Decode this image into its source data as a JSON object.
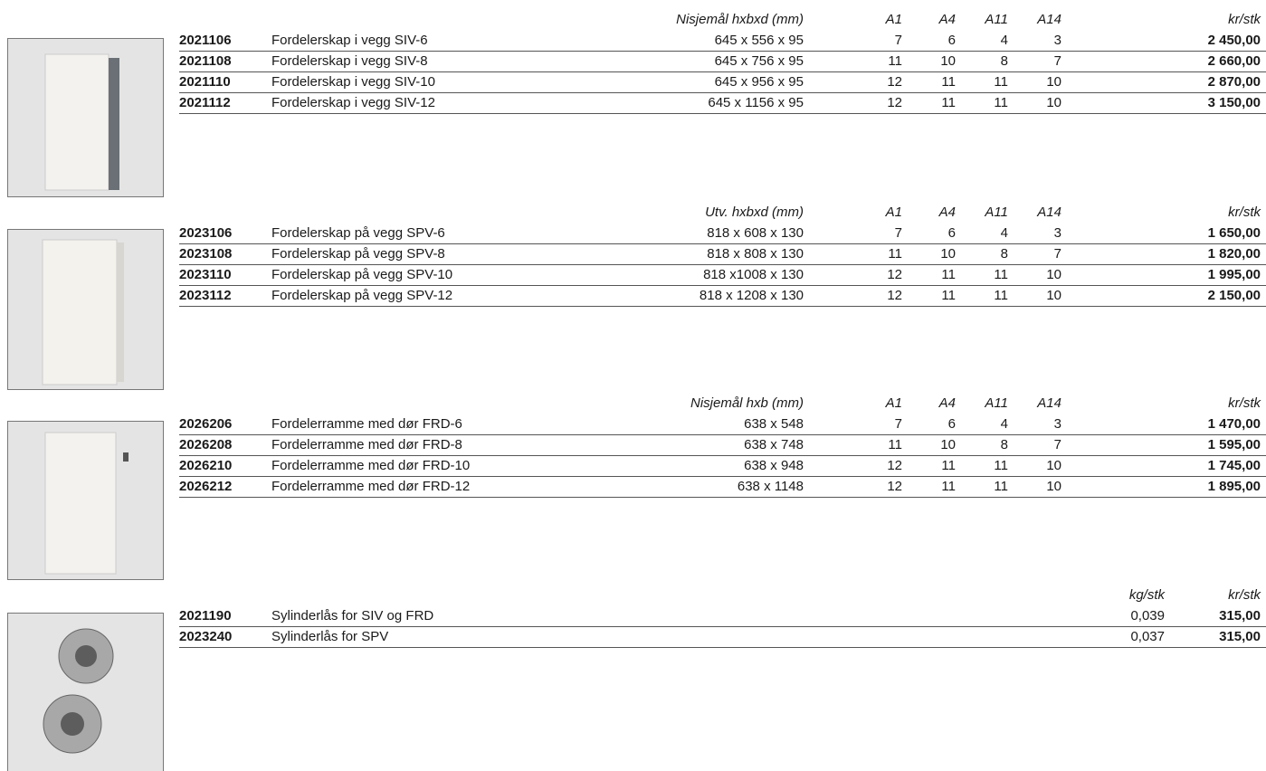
{
  "sections": [
    {
      "headers": [
        "Nisjemål hxbxd (mm)",
        "A1",
        "A4",
        "A11",
        "A14",
        "kr/stk"
      ],
      "rows": [
        [
          "2021106",
          "Fordelerskap i vegg SIV-6",
          "645 x 556 x 95",
          "7",
          "6",
          "4",
          "3",
          "2 450,00"
        ],
        [
          "2021108",
          "Fordelerskap i vegg SIV-8",
          "645 x 756 x 95",
          "11",
          "10",
          "8",
          "7",
          "2 660,00"
        ],
        [
          "2021110",
          "Fordelerskap i vegg SIV-10",
          "645 x 956 x 95",
          "12",
          "11",
          "11",
          "10",
          "2 870,00"
        ],
        [
          "2021112",
          "Fordelerskap i vegg SIV-12",
          "645 x 1156 x 95",
          "12",
          "11",
          "11",
          "10",
          "3 150,00"
        ]
      ]
    },
    {
      "headers": [
        "Utv. hxbxd (mm)",
        "A1",
        "A4",
        "A11",
        "A14",
        "kr/stk"
      ],
      "rows": [
        [
          "2023106",
          "Fordelerskap på vegg SPV-6",
          "818 x 608 x 130",
          "7",
          "6",
          "4",
          "3",
          "1 650,00"
        ],
        [
          "2023108",
          "Fordelerskap på vegg SPV-8",
          "818 x 808 x 130",
          "11",
          "10",
          "8",
          "7",
          "1 820,00"
        ],
        [
          "2023110",
          "Fordelerskap på vegg SPV-10",
          "818 x1008 x 130",
          "12",
          "11",
          "11",
          "10",
          "1 995,00"
        ],
        [
          "2023112",
          "Fordelerskap på vegg SPV-12",
          "818 x 1208 x 130",
          "12",
          "11",
          "11",
          "10",
          "2 150,00"
        ]
      ]
    },
    {
      "headers": [
        "Nisjemål hxb (mm)",
        "A1",
        "A4",
        "A11",
        "A14",
        "kr/stk"
      ],
      "rows": [
        [
          "2026206",
          "Fordelerramme med dør FRD-6",
          "638 x 548",
          "7",
          "6",
          "4",
          "3",
          "1 470,00"
        ],
        [
          "2026208",
          "Fordelerramme med dør FRD-8",
          "638 x 748",
          "11",
          "10",
          "8",
          "7",
          "1 595,00"
        ],
        [
          "2026210",
          "Fordelerramme med dør FRD-10",
          "638 x 948",
          "12",
          "11",
          "11",
          "10",
          "1 745,00"
        ],
        [
          "2026212",
          "Fordelerramme med dør FRD-12",
          "638 x 1148",
          "12",
          "11",
          "11",
          "10",
          "1 895,00"
        ]
      ]
    },
    {
      "headers": [
        "kg/stk",
        "kr/stk"
      ],
      "rows": [
        [
          "2021190",
          "Sylinderlås for SIV og FRD",
          "0,039",
          "315,00"
        ],
        [
          "2023240",
          "Sylinderlås for SPV",
          "0,037",
          "315,00"
        ]
      ]
    }
  ]
}
